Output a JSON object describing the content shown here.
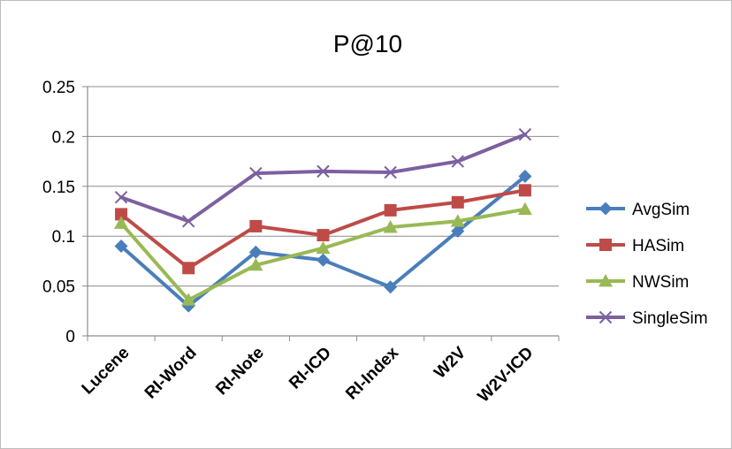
{
  "chart_data": {
    "type": "line",
    "title": "P@10",
    "xlabel": "",
    "ylabel": "",
    "categories": [
      "Lucene",
      "RI-Word",
      "RI-Note",
      "RI-ICD",
      "RI-Index",
      "W2V",
      "W2V-ICD"
    ],
    "ylim": [
      0,
      0.25
    ],
    "yticks": [
      "0",
      "0.05",
      "0.1",
      "0.15",
      "0.2",
      "0.25"
    ],
    "grid": true,
    "legend_position": "right",
    "series": [
      {
        "name": "AvgSim",
        "color": "#4A7EBB",
        "marker": "diamond",
        "values": [
          0.09,
          0.03,
          0.084,
          0.076,
          0.049,
          0.105,
          0.16
        ]
      },
      {
        "name": "HASim",
        "color": "#BE4B48",
        "marker": "square",
        "values": [
          0.122,
          0.068,
          0.11,
          0.101,
          0.126,
          0.134,
          0.146
        ]
      },
      {
        "name": "NWSim",
        "color": "#98B954",
        "marker": "triangle",
        "values": [
          0.113,
          0.036,
          0.071,
          0.088,
          0.109,
          0.115,
          0.127
        ]
      },
      {
        "name": "SingleSim",
        "color": "#7D60A0",
        "marker": "x",
        "values": [
          0.139,
          0.115,
          0.163,
          0.165,
          0.164,
          0.175,
          0.202
        ]
      }
    ]
  }
}
